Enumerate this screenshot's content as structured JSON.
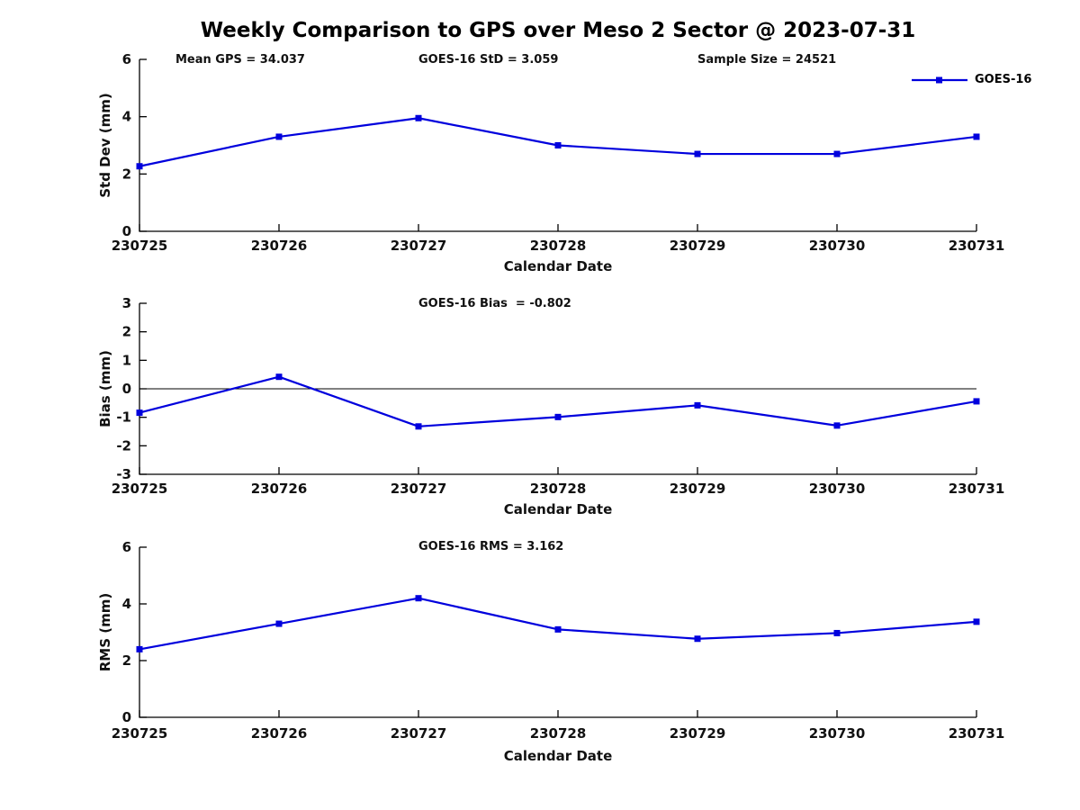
{
  "title": "Weekly Comparison to GPS over Meso 2 Sector @ 2023-07-31",
  "annotations": {
    "mean_gps": "Mean GPS = 34.037",
    "goes16_std": "GOES-16 StD = 3.059",
    "sample_size": "Sample Size = 24521",
    "goes16_bias": "GOES-16 Bias  = -0.802",
    "goes16_rms": "GOES-16 RMS = 3.162"
  },
  "legend": {
    "label": "GOES-16",
    "line_color": "#0000DD",
    "marker": "square"
  },
  "colors": {
    "series_blue": "#0000DD",
    "axis": "#000000",
    "text": "#111111"
  },
  "chart_data": [
    {
      "type": "line",
      "subplot": "std-dev",
      "categories": [
        "230725",
        "230726",
        "230727",
        "230728",
        "230729",
        "230730",
        "230731"
      ],
      "series": [
        {
          "name": "GOES-16",
          "color": "#0000DD",
          "marker": "square",
          "values": [
            2.27,
            3.3,
            3.95,
            3.0,
            2.7,
            2.7,
            3.3
          ]
        }
      ],
      "xlabel": "Calendar Date",
      "ylabel": "Std Dev (mm)",
      "ylim": [
        0,
        6
      ],
      "yticks": [
        0,
        2,
        4,
        6
      ],
      "zero_line": false,
      "grid": false,
      "legend_position": "top-right"
    },
    {
      "type": "line",
      "subplot": "bias",
      "categories": [
        "230725",
        "230726",
        "230727",
        "230728",
        "230729",
        "230730",
        "230731"
      ],
      "series": [
        {
          "name": "GOES-16",
          "color": "#0000DD",
          "marker": "square",
          "values": [
            -0.84,
            0.42,
            -1.32,
            -0.99,
            -0.58,
            -1.29,
            -0.44
          ]
        }
      ],
      "xlabel": "Calendar Date",
      "ylabel": "Bias (mm)",
      "ylim": [
        -3,
        3
      ],
      "yticks": [
        -3,
        -2,
        -1,
        0,
        1,
        2,
        3
      ],
      "zero_line": true,
      "grid": false,
      "legend_position": "none"
    },
    {
      "type": "line",
      "subplot": "rms",
      "categories": [
        "230725",
        "230726",
        "230727",
        "230728",
        "230729",
        "230730",
        "230731"
      ],
      "series": [
        {
          "name": "GOES-16",
          "color": "#0000DD",
          "marker": "square",
          "values": [
            2.4,
            3.3,
            4.2,
            3.1,
            2.77,
            2.97,
            3.37
          ]
        }
      ],
      "xlabel": "Calendar Date",
      "ylabel": "RMS (mm)",
      "ylim": [
        0,
        6
      ],
      "yticks": [
        0,
        2,
        4,
        6
      ],
      "zero_line": false,
      "grid": false,
      "legend_position": "none"
    }
  ]
}
